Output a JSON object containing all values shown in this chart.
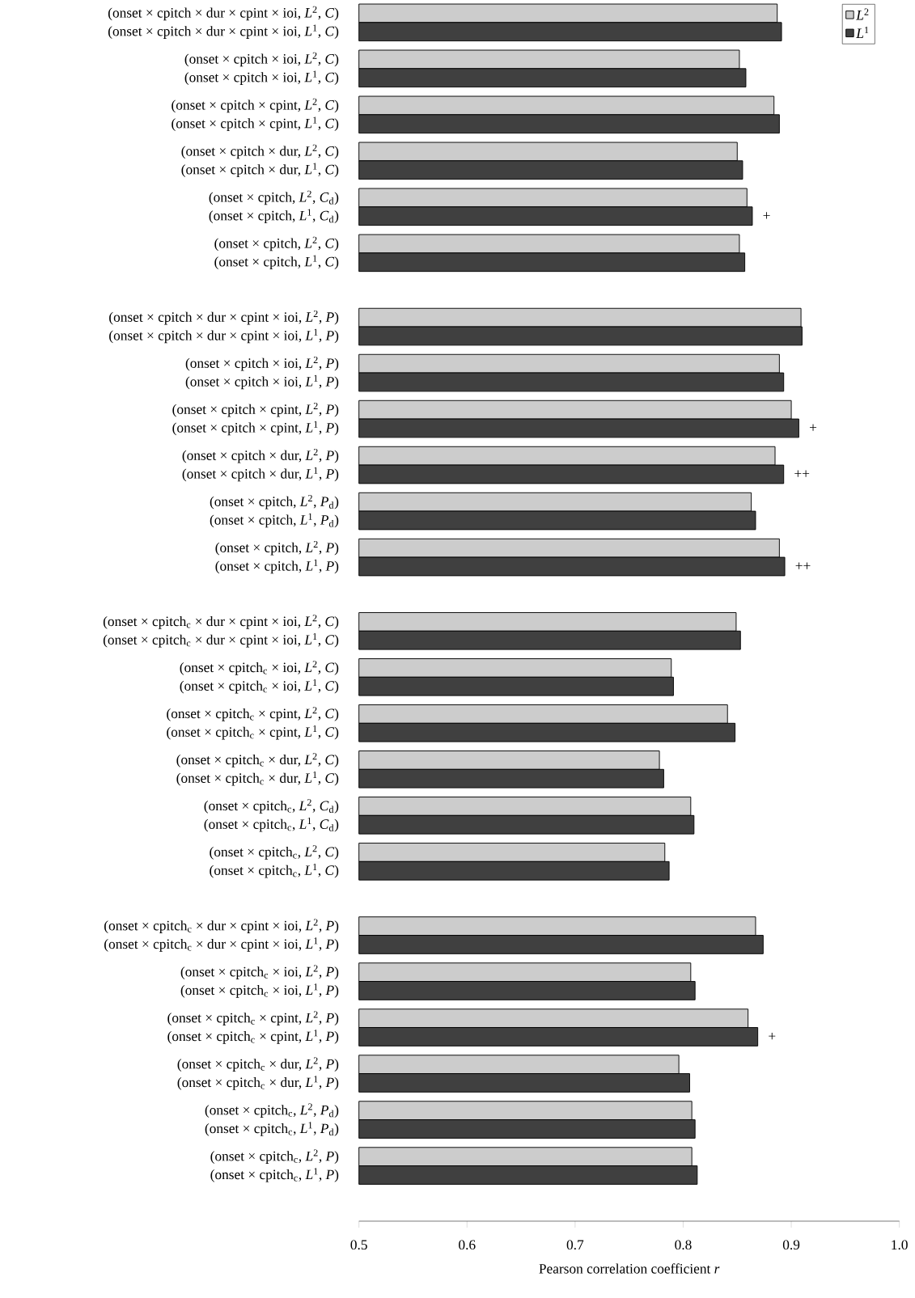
{
  "chart_data": {
    "type": "bar",
    "orientation": "horizontal",
    "xlabel": "Pearson correlation coefficient *r*",
    "categories": [
      "(onset × cpitch × dur × cpint × ioi, *L*$^{2}$, *C*)",
      "(onset × cpitch × dur × cpint × ioi, *L*$^{1}$, *C*)",
      "(onset × cpitch × ioi, *L*$^{2}$, *C*)",
      "(onset × cpitch × ioi, *L*$^{1}$, *C*)",
      "(onset × cpitch × cpint, *L*$^{2}$, *C*)",
      "(onset × cpitch × cpint, *L*$^{1}$, *C*)",
      "(onset × cpitch × dur, *L*$^{2}$, *C*)",
      "(onset × cpitch × dur, *L*$^{1}$, *C*)",
      "(onset × cpitch, *L*$^{2}$, *C*$_{d}$)",
      "(onset × cpitch, *L*$^{1}$, *C*$_{d}$)",
      "(onset × cpitch, *L*$^{2}$, *C*)",
      "(onset × cpitch, *L*$^{1}$, *C*)",
      "(onset × cpitch × dur × cpint × ioi, *L*$^{2}$, *P*)",
      "(onset × cpitch × dur × cpint × ioi, *L*$^{1}$, *P*)",
      "(onset × cpitch × ioi, *L*$^{2}$, *P*)",
      "(onset × cpitch × ioi, *L*$^{1}$, *P*)",
      "(onset × cpitch × cpint, *L*$^{2}$, *P*)",
      "(onset × cpitch × cpint, *L*$^{1}$, *P*)",
      "(onset × cpitch × dur, *L*$^{2}$, *P*)",
      "(onset × cpitch × dur, *L*$^{1}$, *P*)",
      "(onset × cpitch, *L*$^{2}$, *P*$_{d}$)",
      "(onset × cpitch, *L*$^{1}$, *P*$_{d}$)",
      "(onset × cpitch, *L*$^{2}$, *P*)",
      "(onset × cpitch, *L*$^{1}$, *P*)",
      "(onset × cpitch$_{c}$ × dur × cpint × ioi, *L*$^{2}$, *C*)",
      "(onset × cpitch$_{c}$ × dur × cpint × ioi, *L*$^{1}$, *C*)",
      "(onset × cpitch$_{c}$ × ioi, *L*$^{2}$, *C*)",
      "(onset × cpitch$_{c}$ × ioi, *L*$^{1}$, *C*)",
      "(onset × cpitch$_{c}$ × cpint, *L*$^{2}$, *C*)",
      "(onset × cpitch$_{c}$ × cpint, *L*$^{1}$, *C*)",
      "(onset × cpitch$_{c}$ × dur, *L*$^{2}$, *C*)",
      "(onset × cpitch$_{c}$ × dur, *L*$^{1}$, *C*)",
      "(onset × cpitch$_{c}$, *L*$^{2}$, *C*$_{d}$)",
      "(onset × cpitch$_{c}$, *L*$^{1}$, *C*$_{d}$)",
      "(onset × cpitch$_{c}$, *L*$^{2}$, *C*)",
      "(onset × cpitch$_{c}$, *L*$^{1}$, *C*)",
      "(onset × cpitch$_{c}$ × dur × cpint × ioi, *L*$^{2}$, *P*)",
      "(onset × cpitch$_{c}$ × dur × cpint × ioi, *L*$^{1}$, *P*)",
      "(onset × cpitch$_{c}$ × ioi, *L*$^{2}$, *P*)",
      "(onset × cpitch$_{c}$ × ioi, *L*$^{1}$, *P*)",
      "(onset × cpitch$_{c}$ × cpint, *L*$^{2}$, *P*)",
      "(onset × cpitch$_{c}$ × cpint, *L*$^{1}$, *P*)",
      "(onset × cpitch$_{c}$ × dur, *L*$^{2}$, *P*)",
      "(onset × cpitch$_{c}$ × dur, *L*$^{1}$, *P*)",
      "(onset × cpitch$_{c}$, *L*$^{2}$, *P*$_{d}$)",
      "(onset × cpitch$_{c}$, *L*$^{1}$, *P*$_{d}$)",
      "(onset × cpitch$_{c}$, *L*$^{2}$, *P*)",
      "(onset × cpitch$_{c}$, *L*$^{1}$, *P*)"
    ],
    "series": [
      {
        "name": "*L*$^{2}$",
        "color": "#cccccc",
        "values": [
          0.887,
          null,
          0.852,
          null,
          0.884,
          null,
          0.85,
          null,
          0.859,
          null,
          0.852,
          null,
          0.909,
          null,
          0.889,
          null,
          0.9,
          null,
          0.885,
          null,
          0.863,
          null,
          0.889,
          null,
          0.849,
          null,
          0.789,
          null,
          0.841,
          null,
          0.778,
          null,
          0.807,
          null,
          0.783,
          null,
          0.867,
          null,
          0.807,
          null,
          0.86,
          null,
          0.796,
          null,
          0.808,
          null,
          0.808,
          null
        ]
      },
      {
        "name": "*L*$^{1}$",
        "color": "#404040",
        "values": [
          null,
          0.891,
          null,
          0.858,
          null,
          0.889,
          null,
          0.855,
          null,
          0.864,
          null,
          0.857,
          null,
          0.91,
          null,
          0.893,
          null,
          0.907,
          null,
          0.893,
          null,
          0.867,
          null,
          0.894,
          null,
          0.853,
          null,
          0.791,
          null,
          0.848,
          null,
          0.782,
          null,
          0.81,
          null,
          0.787,
          null,
          0.874,
          null,
          0.811,
          null,
          0.869,
          null,
          0.806,
          null,
          0.811,
          null,
          0.813
        ]
      }
    ],
    "xlim": [
      0.5,
      1.0
    ],
    "xticks": [
      0.5,
      0.6,
      0.7,
      0.8,
      0.9,
      {
        "value": 1.0,
        "label": "1.0"
      }
    ],
    "legend": "top right",
    "annotations": [
      {
        "text": "+",
        "x": 0.864,
        "y": "(onset × cpitch, *L*$^{1}$, *C*$_{d}$)"
      },
      {
        "text": "+",
        "x": 0.907,
        "y": "(onset × cpitch × cpint, *L*$^{1}$, *P*)"
      },
      {
        "text": "++",
        "x": 0.893,
        "y": "(onset × cpitch × dur, *L*$^{1}$, *P*)"
      },
      {
        "text": "++",
        "x": 0.894,
        "y": "(onset × cpitch, *L*$^{1}$, *P*)"
      },
      {
        "text": "+",
        "x": 0.869,
        "y": "(onset × cpitch$_{c}$ × cpint, *L*$^{1}$, *P*)"
      }
    ]
  }
}
